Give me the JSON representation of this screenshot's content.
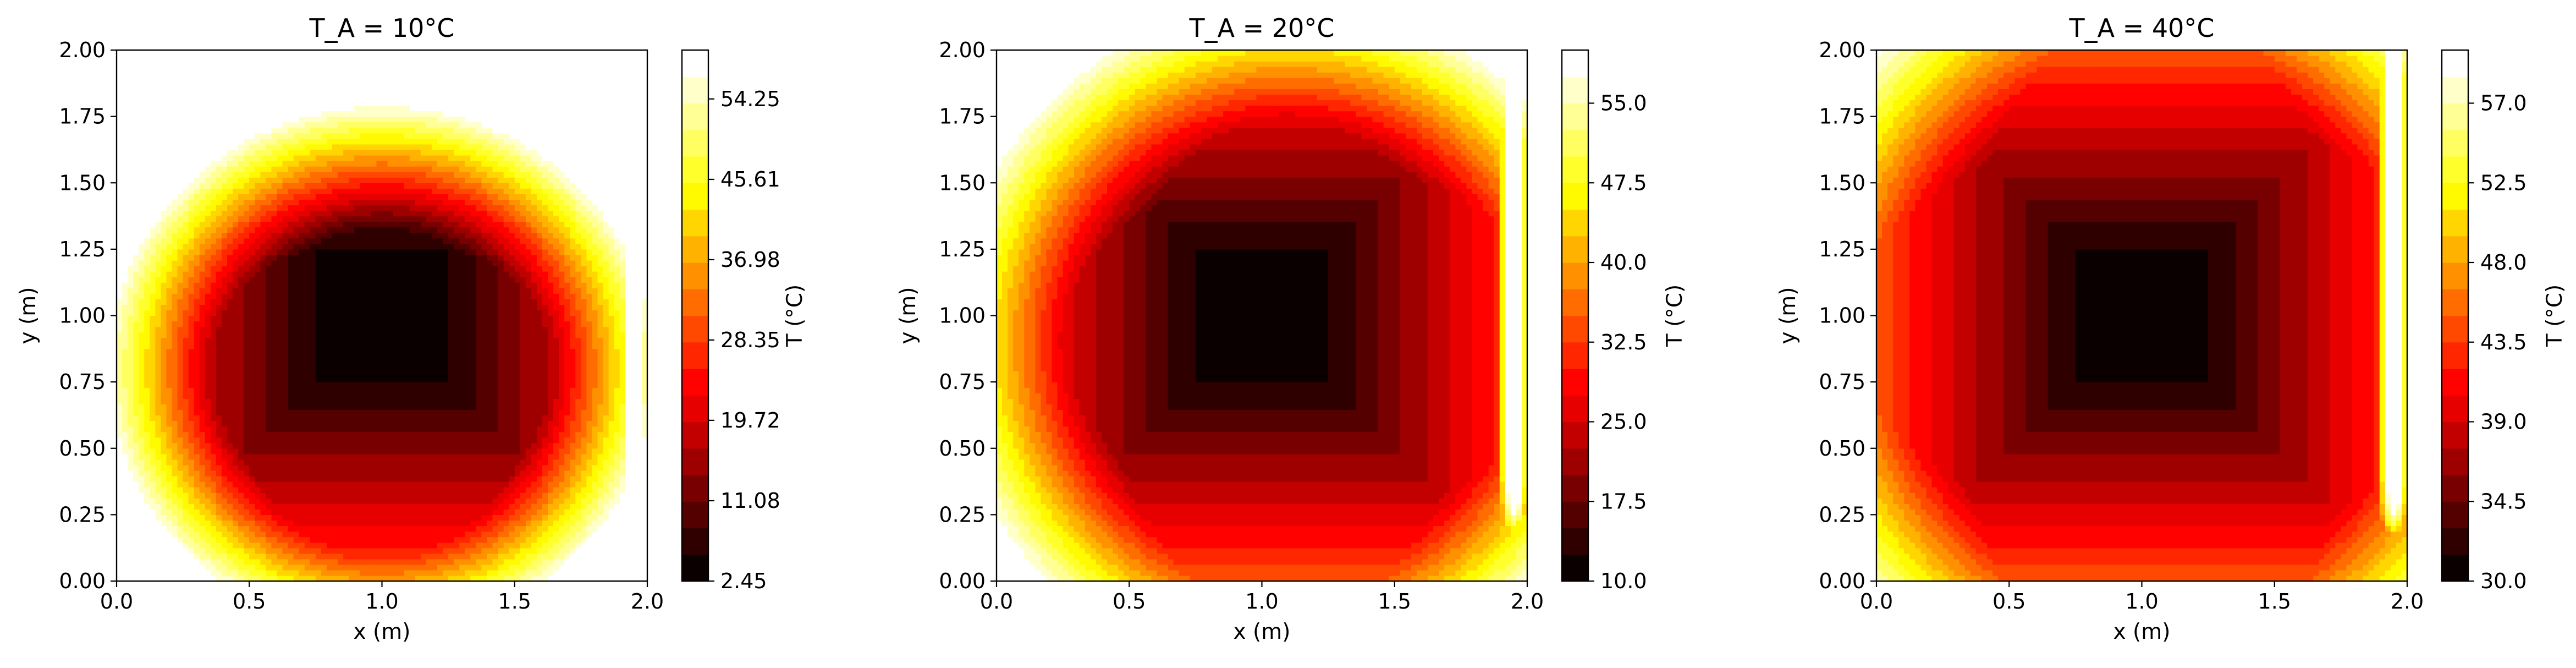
{
  "chart_data": [
    {
      "type": "contour",
      "title": "T_A = 10°C",
      "xlabel": "x (m)",
      "ylabel": "y (m)",
      "xlim": [
        0.0,
        2.0
      ],
      "ylim": [
        0.0,
        2.0
      ],
      "xticks": [
        "0.0",
        "0.5",
        "1.0",
        "1.5",
        "2.0"
      ],
      "yticks": [
        "0.00",
        "0.25",
        "0.50",
        "0.75",
        "1.00",
        "1.25",
        "1.50",
        "1.75",
        "2.00"
      ],
      "colorbar": {
        "label": "T (°C)",
        "range": [
          2.45,
          59.5
        ],
        "ticks": [
          "2.45",
          "11.08",
          "19.72",
          "28.35",
          "36.98",
          "45.61",
          "54.25"
        ],
        "tick_values": [
          2.45,
          11.08,
          19.72,
          28.35,
          36.98,
          45.61,
          54.25
        ]
      },
      "colormap": "hot",
      "cold_core": {
        "center": [
          1.0,
          0.8
        ],
        "radius": [
          0.5,
          0.48
        ],
        "t_min": 2.45
      },
      "hot_wall": {
        "x": 1.95,
        "y_range": [
          0.1,
          2.0
        ],
        "t_max": 59.5
      }
    },
    {
      "type": "contour",
      "title": "T_A = 20°C",
      "xlabel": "x (m)",
      "ylabel": "y (m)",
      "xlim": [
        0.0,
        2.0
      ],
      "ylim": [
        0.0,
        2.0
      ],
      "xticks": [
        "0.0",
        "0.5",
        "1.0",
        "1.5",
        "2.0"
      ],
      "yticks": [
        "0.00",
        "0.25",
        "0.50",
        "0.75",
        "1.00",
        "1.25",
        "1.50",
        "1.75",
        "2.00"
      ],
      "colorbar": {
        "label": "T (°C)",
        "range": [
          10.0,
          60.0
        ],
        "ticks": [
          "10.0",
          "17.5",
          "25.0",
          "32.5",
          "40.0",
          "47.5",
          "55.0"
        ],
        "tick_values": [
          10.0,
          17.5,
          25.0,
          32.5,
          40.0,
          47.5,
          55.0
        ]
      },
      "colormap": "hot",
      "cold_core": {
        "center": [
          1.1,
          0.9
        ],
        "radius": [
          0.62,
          0.62
        ],
        "t_min": 10.0
      },
      "hot_wall": {
        "x": 1.95,
        "y_range": [
          0.1,
          2.0
        ],
        "t_max": 60.0
      }
    },
    {
      "type": "contour",
      "title": "T_A = 40°C",
      "xlabel": "x (m)",
      "ylabel": "y (m)",
      "xlim": [
        0.0,
        2.0
      ],
      "ylim": [
        0.0,
        2.0
      ],
      "xticks": [
        "0.0",
        "0.5",
        "1.0",
        "1.5",
        "2.0"
      ],
      "yticks": [
        "0.00",
        "0.25",
        "0.50",
        "0.75",
        "1.00",
        "1.25",
        "1.50",
        "1.75",
        "2.00"
      ],
      "colorbar": {
        "label": "T (°C)",
        "range": [
          30.0,
          60.0
        ],
        "ticks": [
          "30.0",
          "34.5",
          "39.0",
          "43.5",
          "48.0",
          "52.5",
          "57.0"
        ],
        "tick_values": [
          30.0,
          34.5,
          39.0,
          43.5,
          48.0,
          52.5,
          57.0
        ]
      },
      "colormap": "hot",
      "cold_core": {
        "center": [
          1.05,
          0.95
        ],
        "radius": [
          0.7,
          0.72
        ],
        "t_min": 30.0
      },
      "hot_wall": {
        "x": 1.95,
        "y_range": [
          0.1,
          2.0
        ],
        "t_max": 60.0
      }
    }
  ]
}
